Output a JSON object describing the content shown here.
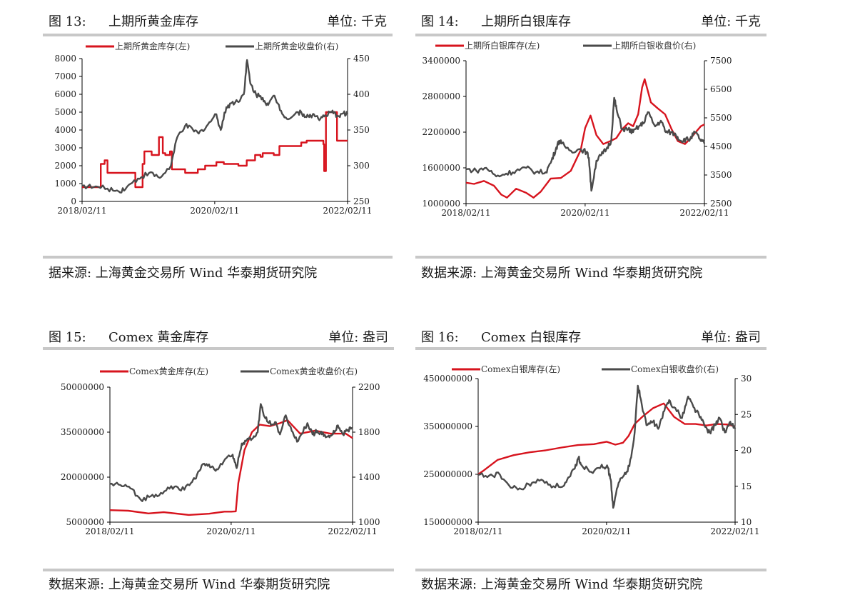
{
  "colors": {
    "left_series": "#d7141e",
    "right_series": "#4a4a4a",
    "rule": "#c8c8c8",
    "axis": "#000000"
  },
  "panels": [
    {
      "fig_num": "图 13:",
      "title": "上期所黄金库存",
      "unit": "单位: 千克",
      "source": "据来源: 上海黄金交易所 Wind 华泰期货研究院",
      "chart_data": {
        "type": "line",
        "legend_position": "top",
        "x_ticks": [
          "2018/02/11",
          "2020/02/11",
          "2022/02/11"
        ],
        "x_range": [
          "2018/02/11",
          "2022/02/11"
        ],
        "y_left": {
          "min": 0,
          "max": 8000,
          "ticks": [
            "0",
            "1000",
            "2000",
            "3000",
            "4000",
            "5000",
            "6000",
            "7000",
            "8000"
          ]
        },
        "y_right": {
          "min": 250,
          "max": 450,
          "ticks": [
            "250",
            "300",
            "350",
            "400",
            "450"
          ]
        },
        "series": [
          {
            "name": "上期所黄金库存(左)",
            "axis": "left",
            "step": true,
            "x": [
              "2018/02/11",
              "2018/05/20",
              "2018/05/25",
              "2018/06/15",
              "2018/07/01",
              "2018/10/20",
              "2018/12/01",
              "2019/01/10",
              "2019/01/20",
              "2019/03/01",
              "2019/04/10",
              "2019/05/01",
              "2019/05/15",
              "2019/06/10",
              "2019/06/20",
              "2019/09/01",
              "2019/11/10",
              "2019/12/20",
              "2020/02/20",
              "2020/04/01",
              "2020/06/01",
              "2020/06/20",
              "2020/08/05",
              "2020/09/20",
              "2020/10/20",
              "2020/11/01",
              "2021/01/01",
              "2021/02/01",
              "2021/06/01",
              "2021/07/01",
              "2021/10/01",
              "2021/10/05",
              "2021/10/15",
              "2021/12/15",
              "2022/02/11"
            ],
            "values": [
              800,
              800,
              2100,
              2300,
              1600,
              1600,
              800,
              2100,
              2800,
              2600,
              3600,
              2700,
              2600,
              2800,
              1800,
              1600,
              1800,
              2000,
              2200,
              2100,
              2100,
              2000,
              2300,
              2600,
              2500,
              2700,
              2600,
              3100,
              3300,
              3400,
              3200,
              1700,
              5000,
              3400,
              3400
            ]
          },
          {
            "name": "上期所黄金收盘价(右)",
            "axis": "right",
            "step": false,
            "x": [
              "2018/02/11",
              "2018/04/15",
              "2018/07/01",
              "2018/09/01",
              "2018/10/15",
              "2018/12/15",
              "2019/02/15",
              "2019/04/15",
              "2019/06/15",
              "2019/07/20",
              "2019/09/01",
              "2019/10/15",
              "2019/11/15",
              "2020/01/05",
              "2020/02/20",
              "2020/03/15",
              "2020/04/15",
              "2020/05/15",
              "2020/06/15",
              "2020/07/20",
              "2020/08/07",
              "2020/08/25",
              "2020/09/25",
              "2020/11/01",
              "2020/12/01",
              "2021/01/05",
              "2021/02/10",
              "2021/03/20",
              "2021/05/15",
              "2021/06/15",
              "2021/07/15",
              "2021/08/10",
              "2021/09/15",
              "2021/10/15",
              "2021/11/15",
              "2021/12/15",
              "2022/01/15",
              "2022/02/11"
            ],
            "values": [
              272,
              270,
              268,
              264,
              270,
              282,
              290,
              283,
              300,
              340,
              356,
              350,
              345,
              358,
              372,
              350,
              382,
              388,
              390,
              400,
              448,
              415,
              400,
              395,
              385,
              398,
              377,
              365,
              375,
              372,
              368,
              372,
              366,
              370,
              375,
              370,
              373,
              373
            ]
          }
        ]
      }
    },
    {
      "fig_num": "图 14:",
      "title": "上期所白银库存",
      "unit": "单位: 千克",
      "source": "数据来源: 上海黄金交易所 Wind 华泰期货研究院",
      "chart_data": {
        "type": "line",
        "legend_position": "top",
        "x_ticks": [
          "2018/02/11",
          "2020/02/11",
          "2022/02/11"
        ],
        "x_range": [
          "2018/02/11",
          "2022/02/11"
        ],
        "y_left": {
          "min": 1000000,
          "max": 3400000,
          "ticks": [
            "1000000",
            "1600000",
            "2200000",
            "2800000",
            "3400000"
          ]
        },
        "y_right": {
          "min": 2500,
          "max": 7500,
          "ticks": [
            "2500",
            "3500",
            "4500",
            "5500",
            "6500",
            "7500"
          ]
        },
        "series": [
          {
            "name": "上期所白银库存(左)",
            "axis": "left",
            "step": false,
            "x": [
              "2018/02/11",
              "2018/04/01",
              "2018/06/01",
              "2018/08/01",
              "2018/09/15",
              "2018/10/20",
              "2018/12/15",
              "2019/02/15",
              "2019/04/01",
              "2019/05/15",
              "2019/07/15",
              "2019/09/15",
              "2019/11/15",
              "2020/01/15",
              "2020/02/11",
              "2020/03/15",
              "2020/04/20",
              "2020/06/01",
              "2020/07/15",
              "2020/08/20",
              "2020/09/25",
              "2020/11/01",
              "2020/12/01",
              "2021/01/01",
              "2021/01/25",
              "2021/02/10",
              "2021/03/20",
              "2021/05/01",
              "2021/06/15",
              "2021/07/25",
              "2021/09/01",
              "2021/10/15",
              "2021/11/20",
              "2021/12/20",
              "2022/01/20",
              "2022/02/11"
            ],
            "values": [
              1350000,
              1330000,
              1380000,
              1300000,
              1150000,
              1100000,
              1250000,
              1180000,
              1100000,
              1200000,
              1420000,
              1430000,
              1550000,
              1900000,
              2270000,
              2480000,
              2150000,
              2000000,
              2050000,
              2100000,
              2250000,
              2350000,
              2300000,
              2500000,
              2950000,
              3090000,
              2700000,
              2600000,
              2500000,
              2250000,
              2050000,
              2000000,
              2100000,
              2200000,
              2300000,
              2330000
            ]
          },
          {
            "name": "上期所白银收盘价(右)",
            "axis": "right",
            "step": false,
            "x": [
              "2018/02/11",
              "2018/04/15",
              "2018/06/15",
              "2018/08/15",
              "2018/10/15",
              "2018/12/15",
              "2019/02/15",
              "2019/04/15",
              "2019/06/15",
              "2019/07/20",
              "2019/08/15",
              "2019/09/05",
              "2019/09/20",
              "2019/11/15",
              "2020/01/15",
              "2020/02/20",
              "2020/03/05",
              "2020/03/20",
              "2020/04/20",
              "2020/05/20",
              "2020/06/20",
              "2020/07/20",
              "2020/08/07",
              "2020/08/25",
              "2020/09/25",
              "2020/11/01",
              "2020/12/01",
              "2021/01/05",
              "2021/02/01",
              "2021/03/01",
              "2021/04/15",
              "2021/05/20",
              "2021/06/20",
              "2021/07/20",
              "2021/08/20",
              "2021/09/20",
              "2021/10/20",
              "2021/11/15",
              "2021/12/15",
              "2022/01/15",
              "2022/02/11"
            ],
            "values": [
              3700,
              3650,
              3750,
              3450,
              3550,
              3650,
              3750,
              3600,
              3600,
              4000,
              4400,
              4700,
              4600,
              4350,
              4400,
              4300,
              4100,
              2950,
              4000,
              4200,
              4400,
              4700,
              6200,
              5700,
              5100,
              5100,
              5000,
              5200,
              5300,
              5700,
              5200,
              5400,
              5000,
              5000,
              4900,
              4700,
              4750,
              4750,
              5000,
              4750,
              4600
            ]
          }
        ]
      }
    },
    {
      "fig_num": "图 15:",
      "title": "Comex 黄金库存",
      "unit": "单位: 盎司",
      "source": "数据来源: 上海黄金交易所 Wind 华泰期货研究院",
      "chart_data": {
        "type": "line",
        "legend_position": "top",
        "x_ticks": [
          "2018/02/11",
          "2020/02/11",
          "2022/02/11"
        ],
        "x_range": [
          "2018/02/11",
          "2022/02/11"
        ],
        "y_left": {
          "min": 5000000,
          "max": 50000000,
          "ticks": [
            "5000000",
            "20000000",
            "35000000",
            "50000000"
          ]
        },
        "y_right": {
          "min": 1000,
          "max": 2200,
          "ticks": [
            "1000",
            "1400",
            "1800",
            "2200"
          ]
        },
        "series": [
          {
            "name": "Comex黄金库存(左)",
            "axis": "left",
            "step": false,
            "x": [
              "2018/02/11",
              "2018/06/01",
              "2018/10/01",
              "2019/01/01",
              "2019/06/01",
              "2019/10/01",
              "2020/01/01",
              "2020/02/11",
              "2020/03/10",
              "2020/03/25",
              "2020/05/01",
              "2020/06/15",
              "2020/08/01",
              "2020/10/01",
              "2020/12/01",
              "2021/01/15",
              "2021/04/01",
              "2021/07/01",
              "2021/10/01",
              "2022/01/01",
              "2022/02/11"
            ],
            "values": [
              9000000,
              8800000,
              7900000,
              8300000,
              7400000,
              7800000,
              8500000,
              8500000,
              8600000,
              18000000,
              29000000,
              35000000,
              37500000,
              37000000,
              38000000,
              39000000,
              34500000,
              35500000,
              34500000,
              34500000,
              33000000
            ]
          },
          {
            "name": "Comex黄金收盘价(右)",
            "axis": "right",
            "step": false,
            "x": [
              "2018/02/11",
              "2018/04/15",
              "2018/06/15",
              "2018/08/15",
              "2018/10/15",
              "2018/12/15",
              "2019/02/15",
              "2019/04/15",
              "2019/06/15",
              "2019/07/20",
              "2019/09/01",
              "2019/10/15",
              "2019/11/15",
              "2020/01/05",
              "2020/02/20",
              "2020/03/15",
              "2020/04/15",
              "2020/05/15",
              "2020/06/15",
              "2020/07/20",
              "2020/08/07",
              "2020/08/25",
              "2020/09/25",
              "2020/11/01",
              "2020/12/01",
              "2021/01/05",
              "2021/02/10",
              "2021/03/20",
              "2021/05/15",
              "2021/06/15",
              "2021/07/15",
              "2021/08/10",
              "2021/09/15",
              "2021/10/15",
              "2021/11/15",
              "2021/12/15",
              "2022/01/15",
              "2022/02/11"
            ],
            "values": [
              1340,
              1330,
              1300,
              1200,
              1230,
              1260,
              1320,
              1280,
              1350,
              1420,
              1520,
              1490,
              1470,
              1560,
              1600,
              1480,
              1700,
              1730,
              1740,
              1800,
              2050,
              1950,
              1880,
              1890,
              1780,
              1950,
              1810,
              1720,
              1880,
              1780,
              1810,
              1780,
              1760,
              1780,
              1860,
              1780,
              1820,
              1840
            ]
          }
        ]
      }
    },
    {
      "fig_num": "图 16:",
      "title": "Comex 白银库存",
      "unit": "单位: 盎司",
      "source": "数据来源: 上海黄金交易所 Wind 华泰期货研究院",
      "chart_data": {
        "type": "line",
        "legend_position": "top",
        "x_ticks": [
          "2018/02/11",
          "2020/02/11",
          "2022/02/11"
        ],
        "x_range": [
          "2018/02/11",
          "2022/02/11"
        ],
        "y_left": {
          "min": 150000000,
          "max": 450000000,
          "ticks": [
            "150000000",
            "250000000",
            "350000000",
            "450000000"
          ]
        },
        "y_right": {
          "min": 10,
          "max": 30,
          "ticks": [
            "10",
            "15",
            "20",
            "25",
            "30"
          ]
        },
        "series": [
          {
            "name": "Comex白银库存(左)",
            "axis": "left",
            "step": false,
            "x": [
              "2018/02/11",
              "2018/03/15",
              "2018/06/01",
              "2018/09/01",
              "2018/12/01",
              "2019/03/01",
              "2019/06/01",
              "2019/09/01",
              "2019/12/01",
              "2020/02/11",
              "2020/04/01",
              "2020/05/15",
              "2020/06/15",
              "2020/07/20",
              "2020/09/01",
              "2020/11/01",
              "2021/01/01",
              "2021/03/01",
              "2021/05/01",
              "2021/07/01",
              "2021/09/01",
              "2021/11/01",
              "2022/01/01",
              "2022/02/11"
            ],
            "values": [
              250000000,
              258000000,
              280000000,
              290000000,
              296000000,
              300000000,
              306000000,
              311000000,
              313000000,
              318000000,
              312000000,
              316000000,
              330000000,
              355000000,
              370000000,
              388000000,
              398000000,
              370000000,
              355000000,
              355000000,
              352000000,
              355000000,
              354000000,
              350000000
            ]
          },
          {
            "name": "Comex白银收盘价(右)",
            "axis": "right",
            "step": false,
            "x": [
              "2018/02/11",
              "2018/04/15",
              "2018/06/15",
              "2018/08/15",
              "2018/10/15",
              "2018/12/15",
              "2019/02/15",
              "2019/04/15",
              "2019/06/15",
              "2019/07/20",
              "2019/08/15",
              "2019/09/05",
              "2019/09/20",
              "2019/11/15",
              "2020/01/15",
              "2020/02/20",
              "2020/03/05",
              "2020/03/20",
              "2020/04/20",
              "2020/05/20",
              "2020/06/20",
              "2020/07/20",
              "2020/08/07",
              "2020/08/25",
              "2020/09/25",
              "2020/11/01",
              "2020/12/01",
              "2021/01/05",
              "2021/02/01",
              "2021/03/01",
              "2021/04/15",
              "2021/05/20",
              "2021/06/20",
              "2021/07/20",
              "2021/08/20",
              "2021/09/20",
              "2021/10/20",
              "2021/11/15",
              "2021/12/15",
              "2022/01/15",
              "2022/02/11"
            ],
            "values": [
              16.6,
              16.5,
              16.6,
              14.8,
              14.6,
              15.5,
              15.8,
              15.0,
              15.1,
              16.4,
              17.5,
              19.0,
              18.0,
              17.0,
              18.0,
              17.5,
              16.0,
              12.0,
              15.5,
              16.5,
              17.8,
              22.5,
              29.0,
              27.0,
              23.5,
              24.0,
              23.0,
              25.5,
              27.0,
              26.0,
              24.5,
              27.5,
              26.0,
              25.0,
              23.5,
              22.5,
              23.5,
              24.5,
              22.5,
              24.0,
              23.0
            ]
          }
        ]
      }
    }
  ]
}
